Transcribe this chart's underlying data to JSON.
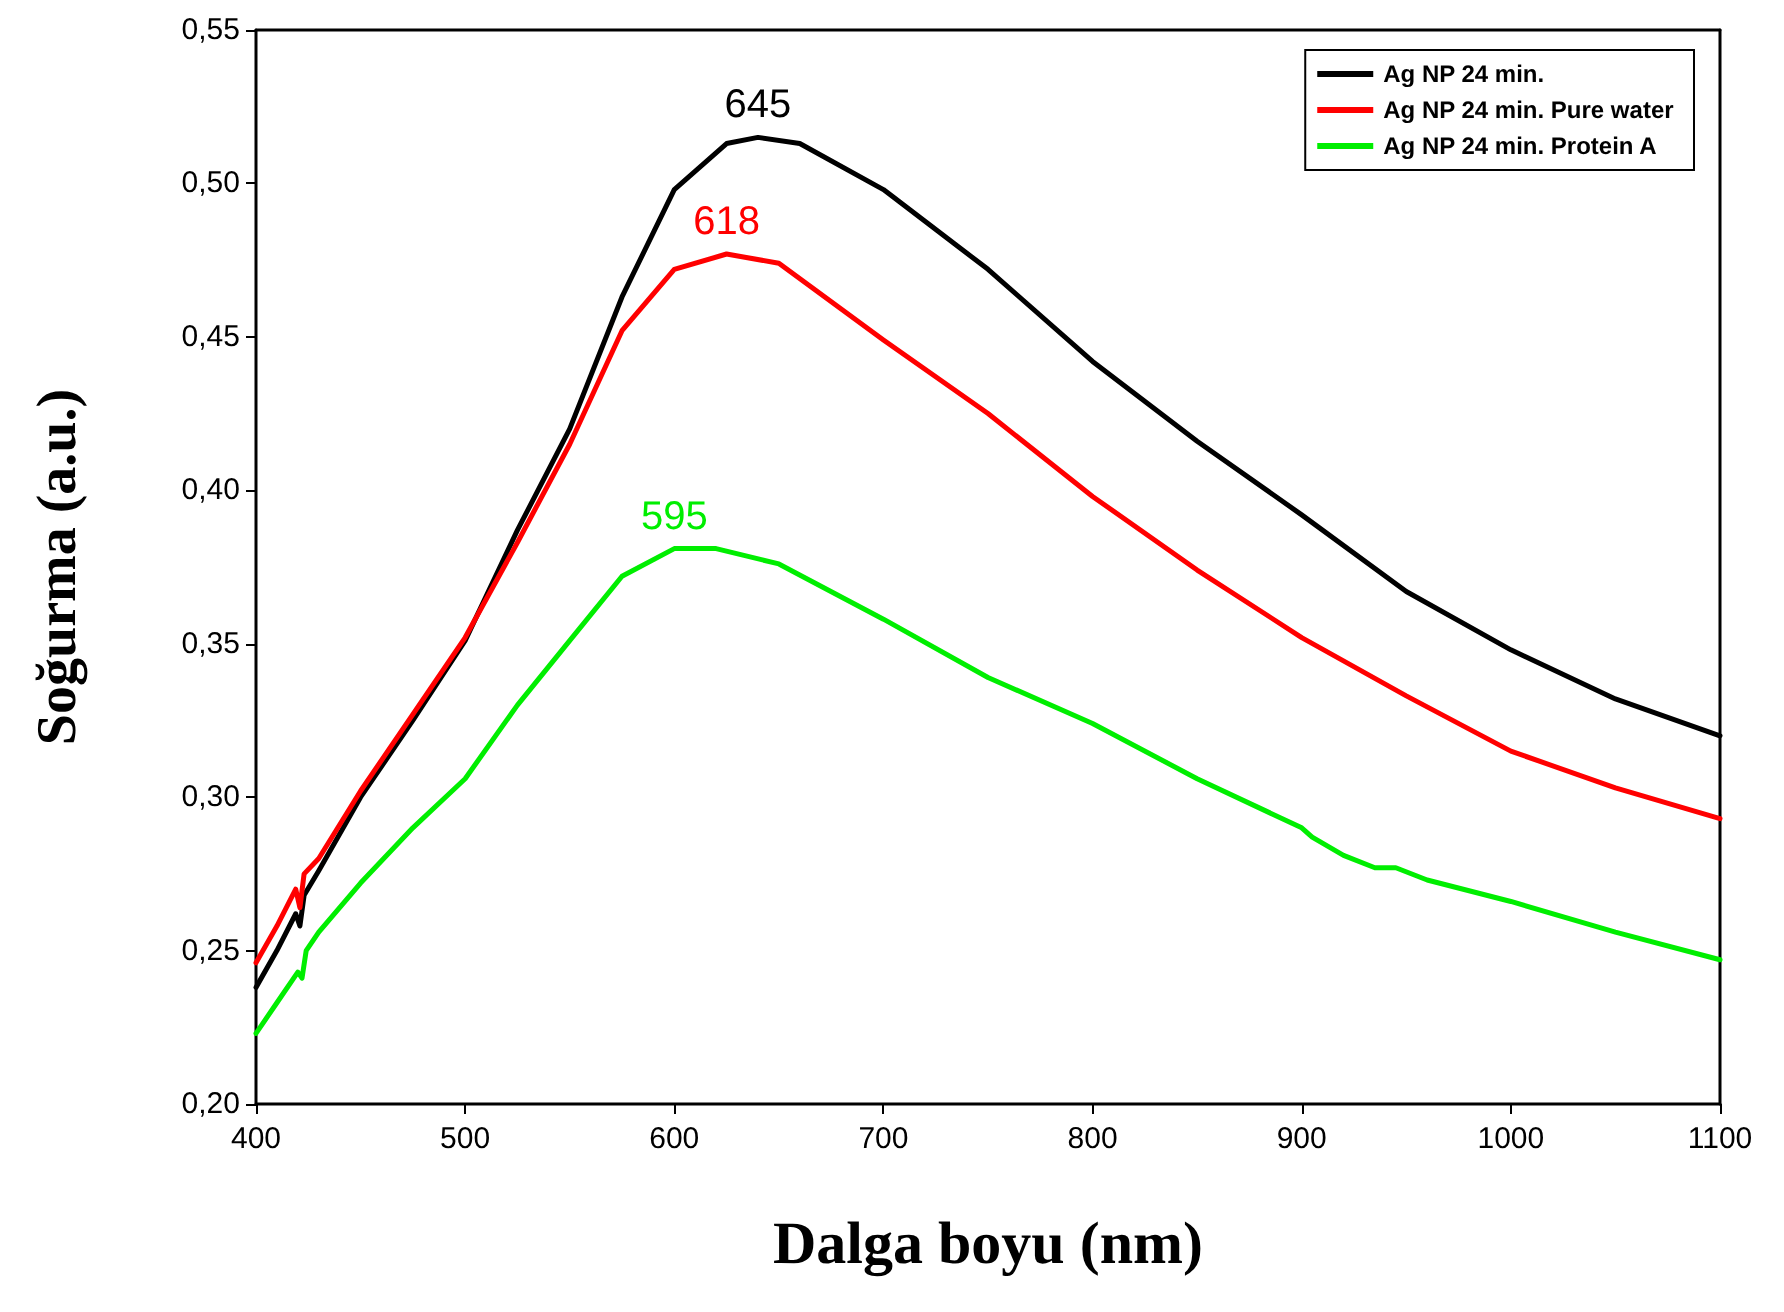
{
  "chart_data": {
    "type": "line",
    "xlabel": "Dalga boyu (nm)",
    "ylabel": "Soğurma (a.u.)",
    "xlim": [
      400,
      1100
    ],
    "xticks": [
      400,
      500,
      600,
      700,
      800,
      900,
      1000,
      1100
    ],
    "ylim": [
      0.2,
      0.55
    ],
    "yticks": [
      {
        "value": 0.2,
        "label": "0,20"
      },
      {
        "value": 0.25,
        "label": "0,25"
      },
      {
        "value": 0.3,
        "label": "0,30"
      },
      {
        "value": 0.35,
        "label": "0,35"
      },
      {
        "value": 0.4,
        "label": "0,40"
      },
      {
        "value": 0.45,
        "label": "0,45"
      },
      {
        "value": 0.5,
        "label": "0,50"
      },
      {
        "value": 0.55,
        "label": "0,55"
      }
    ],
    "grid": false,
    "legend": "top right",
    "marker": "none",
    "line_style": "solid",
    "series": [
      {
        "name": "Ag NP 24 min.",
        "color": "#000000",
        "x": [
          400,
          410,
          419,
          421,
          423,
          430,
          450,
          475,
          500,
          525,
          550,
          575,
          600,
          625,
          640,
          660,
          700,
          750,
          800,
          850,
          900,
          950,
          1000,
          1050,
          1100
        ],
        "values": [
          0.238,
          0.25,
          0.262,
          0.258,
          0.268,
          0.276,
          0.3,
          0.325,
          0.351,
          0.387,
          0.42,
          0.463,
          0.498,
          0.513,
          0.515,
          0.513,
          0.498,
          0.472,
          0.442,
          0.416,
          0.392,
          0.367,
          0.348,
          0.332,
          0.32
        ]
      },
      {
        "name": "Ag NP 24 min. Pure water",
        "color": "#ff0000",
        "x": [
          400,
          410,
          419,
          421,
          423,
          430,
          450,
          475,
          500,
          525,
          550,
          575,
          600,
          625,
          650,
          700,
          750,
          800,
          850,
          900,
          950,
          1000,
          1050,
          1100
        ],
        "values": [
          0.246,
          0.258,
          0.27,
          0.264,
          0.275,
          0.28,
          0.302,
          0.327,
          0.352,
          0.383,
          0.415,
          0.452,
          0.472,
          0.477,
          0.474,
          0.449,
          0.425,
          0.398,
          0.374,
          0.352,
          0.333,
          0.315,
          0.303,
          0.293
        ]
      },
      {
        "name": "Ag NP 24 min. Protein A",
        "color": "#00ee00",
        "x": [
          400,
          410,
          420,
          422,
          424,
          430,
          450,
          475,
          500,
          525,
          550,
          575,
          600,
          620,
          650,
          700,
          750,
          800,
          850,
          900,
          905,
          920,
          935,
          945,
          960,
          1000,
          1050,
          1100
        ],
        "values": [
          0.223,
          0.233,
          0.243,
          0.241,
          0.25,
          0.256,
          0.272,
          0.29,
          0.306,
          0.33,
          0.351,
          0.372,
          0.381,
          0.381,
          0.376,
          0.358,
          0.339,
          0.324,
          0.306,
          0.29,
          0.287,
          0.281,
          0.277,
          0.277,
          0.273,
          0.266,
          0.256,
          0.247
        ]
      }
    ],
    "annotations": [
      {
        "text": "645",
        "x": 640,
        "y": 0.515
      },
      {
        "text": "618",
        "x": 625,
        "y": 0.477
      },
      {
        "text": "595",
        "x": 600,
        "y": 0.381
      }
    ]
  }
}
